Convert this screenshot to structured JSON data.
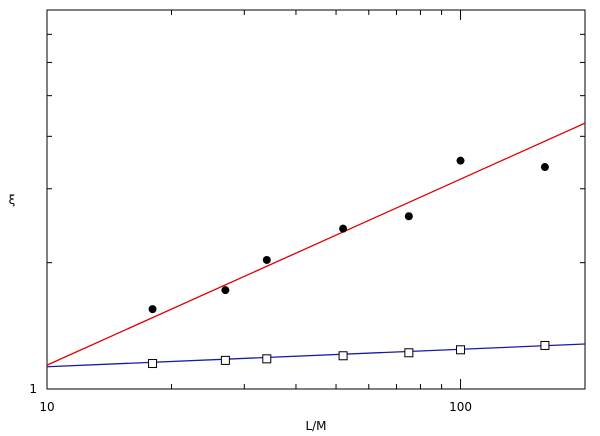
{
  "chart_data": {
    "type": "scatter",
    "title": "",
    "xlabel": "L/M",
    "ylabel": "ξ",
    "xscale": "log",
    "yscale": "log",
    "xlim": [
      10,
      200
    ],
    "ylim": [
      1,
      8
    ],
    "grid": false,
    "x_tick_labels": [
      "10",
      "100"
    ],
    "y_tick_labels": [
      "1"
    ],
    "series": [
      {
        "marker": "filled-circle",
        "color": "#000000",
        "points": [
          [
            18,
            1.55
          ],
          [
            27,
            1.72
          ],
          [
            34,
            2.03
          ],
          [
            52,
            2.41
          ],
          [
            75,
            2.58
          ],
          [
            100,
            3.5
          ],
          [
            160,
            3.38
          ]
        ]
      },
      {
        "marker": "open-square",
        "color": "#000000",
        "points": [
          [
            18,
            1.15
          ],
          [
            27,
            1.17
          ],
          [
            34,
            1.18
          ],
          [
            52,
            1.2
          ],
          [
            75,
            1.22
          ],
          [
            100,
            1.24
          ],
          [
            160,
            1.27
          ]
        ]
      }
    ],
    "fit_lines": [
      {
        "color": "#e00000",
        "points": [
          [
            10,
            1.14
          ],
          [
            200,
            4.3
          ]
        ]
      },
      {
        "color": "#1a1aa8",
        "points": [
          [
            10,
            1.13
          ],
          [
            200,
            1.28
          ]
        ]
      }
    ]
  }
}
